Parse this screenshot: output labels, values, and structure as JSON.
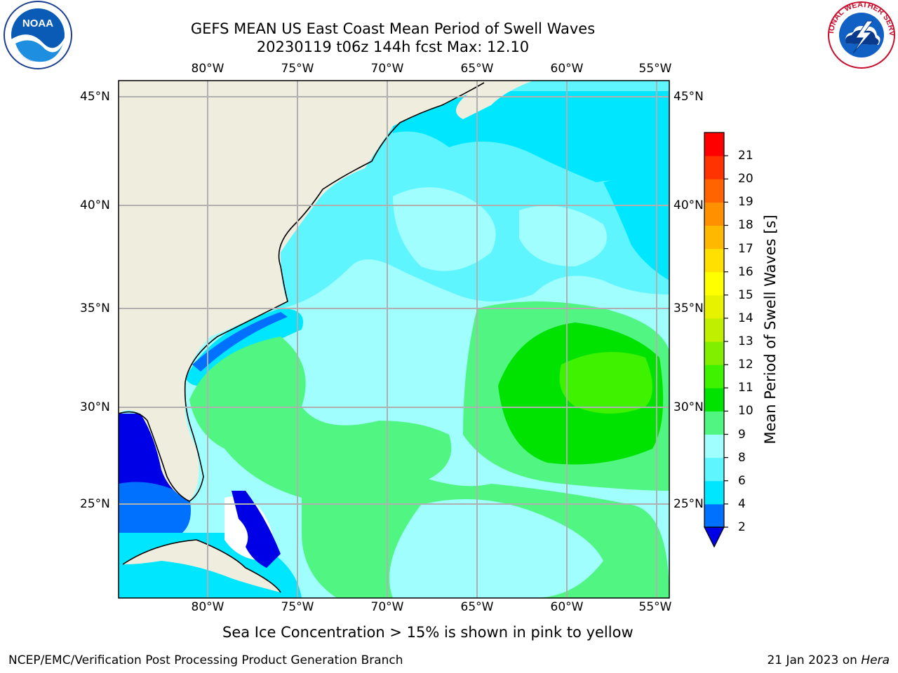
{
  "header": {
    "title_line1": "GEFS MEAN US East Coast Mean Period of Swell Waves",
    "title_line2": "20230119 t06z 144h fcst   Max: 12.10"
  },
  "logos": {
    "left": "noaa-logo",
    "right": "national-weather-service-logo",
    "left_text": "NOAA",
    "right_text": "NATIONAL WEATHER SERVICE"
  },
  "map": {
    "projection": "lat-lon",
    "lon_range": [
      -85,
      -54.2
    ],
    "lat_range": [
      20.5,
      45.8
    ],
    "longitude_ticks": [
      "80°W",
      "75°W",
      "70°W",
      "65°W",
      "60°W",
      "55°W"
    ],
    "latitude_ticks": [
      "45°N",
      "40°N",
      "35°N",
      "30°N",
      "25°N"
    ],
    "grid": true,
    "land_color": "#efedde",
    "masked_color": "#ffffff"
  },
  "colorbar": {
    "label": "Mean Period of Swell Waves [s]",
    "ticks": [
      "2",
      "4",
      "6",
      "8",
      "9",
      "10",
      "11",
      "12",
      "13",
      "14",
      "15",
      "16",
      "17",
      "18",
      "19",
      "20",
      "21"
    ],
    "levels": [
      2,
      4,
      6,
      8,
      9,
      10,
      11,
      12,
      13,
      14,
      15,
      16,
      17,
      18,
      19,
      20,
      21
    ],
    "colors": [
      "#0070ff",
      "#00e6ff",
      "#5ff5ff",
      "#a0fffe",
      "#50f582",
      "#00e300",
      "#3ef200",
      "#80f000",
      "#c0f000",
      "#e6f200",
      "#ffff00",
      "#ffe000",
      "#ffb800",
      "#ff9000",
      "#ff6400",
      "#ff3300",
      "#ff0000"
    ],
    "extend_below_color": "#0000e6"
  },
  "notes": {
    "sea_ice": "Sea Ice Concentration > 15% is shown in pink to yellow"
  },
  "footer": {
    "left": "NCEP/EMC/Verification Post Processing Product Generation Branch",
    "right_date": "21 Jan 2023 on ",
    "right_host": "Hera"
  }
}
